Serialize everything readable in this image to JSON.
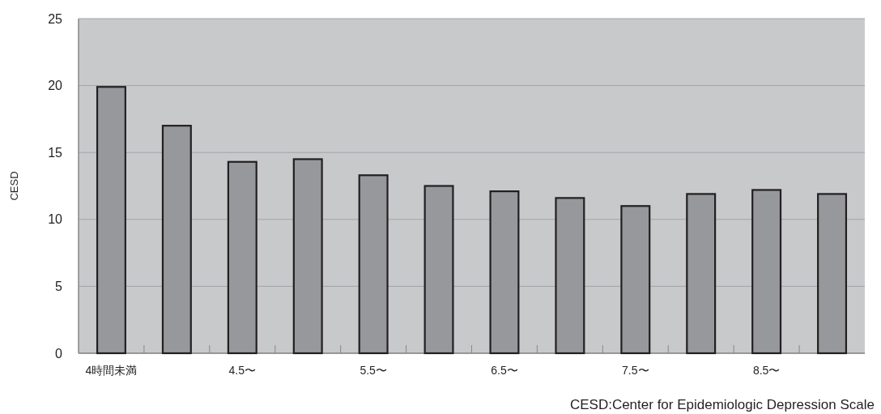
{
  "chart_data": {
    "type": "bar",
    "ylabel": "CESD",
    "categories": [
      "4時間未満",
      null,
      "4.5〜",
      null,
      "5.5〜",
      null,
      "6.5〜",
      null,
      "7.5〜",
      null,
      "8.5〜",
      null
    ],
    "values": [
      19.9,
      17.0,
      14.3,
      14.5,
      13.3,
      12.5,
      12.1,
      11.6,
      11.0,
      11.9,
      12.2,
      11.9
    ],
    "color": "#97989c",
    "ylim": [
      0,
      25
    ],
    "yticks": [
      0,
      5,
      10,
      15,
      20,
      25
    ],
    "grid": "y",
    "annotations": [
      "CESD:Center for Epidemiologic Depression Scale"
    ]
  }
}
